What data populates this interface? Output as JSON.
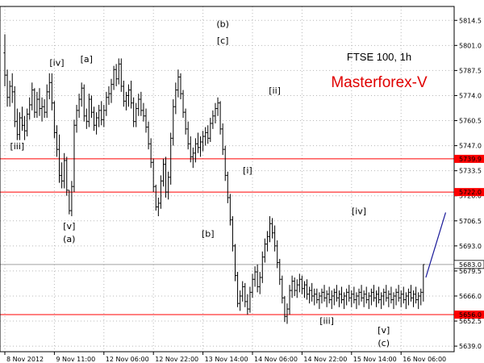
{
  "chart_data": {
    "type": "ohlc",
    "symbol_label": "FTSE 100, 1h",
    "brand_label": "Masterforex-V",
    "colors": {
      "bar": "#000000",
      "level": "#ff0000",
      "forecast": "#1a1a99",
      "brand": "#e00000",
      "grid": "#b8b8b8"
    },
    "ylim": [
      5636.0,
      5822.0
    ],
    "y_ticks": [
      "5814.5",
      "5801.0",
      "5787.5",
      "5774.0",
      "5760.5",
      "5747.0",
      "5733.5",
      "5720.0",
      "5706.5",
      "5693.0",
      "5679.5",
      "5666.0",
      "5652.5",
      "5639.0"
    ],
    "x_ticks": [
      {
        "index": 0,
        "label": "8 Nov 2012"
      },
      {
        "index": 20,
        "label": "9 Nov 11:00"
      },
      {
        "index": 40,
        "label": "12 Nov 06:00"
      },
      {
        "index": 60,
        "label": "12 Nov 22:00"
      },
      {
        "index": 80,
        "label": "13 Nov 14:00"
      },
      {
        "index": 100,
        "label": "14 Nov 06:00"
      },
      {
        "index": 120,
        "label": "14 Nov 22:00"
      },
      {
        "index": 140,
        "label": "15 Nov 14:00"
      },
      {
        "index": 160,
        "label": "16 Nov 06:00"
      }
    ],
    "bar_count": 170,
    "levels": [
      {
        "value": 5739.9,
        "label": "5739.9"
      },
      {
        "value": 5722.0,
        "label": "5722.0"
      },
      {
        "value": 5656.0,
        "label": "5656.0"
      }
    ],
    "current_price": {
      "value": 5683.0,
      "label": "5683.0"
    },
    "forecast_line": {
      "from": {
        "index": 170,
        "price": 5676
      },
      "to": {
        "index": 178,
        "price": 5711
      }
    },
    "wave_labels": [
      {
        "text": "[iii]",
        "index": 5,
        "price": 5745
      },
      {
        "text": "[iv]",
        "index": 21,
        "price": 5790
      },
      {
        "text": "[v]",
        "index": 26,
        "price": 5702
      },
      {
        "text": "(a)",
        "index": 26,
        "price": 5695
      },
      {
        "text": "[a]",
        "index": 33,
        "price": 5792
      },
      {
        "text": "(b)",
        "index": 88,
        "price": 5811
      },
      {
        "text": "[c]",
        "index": 88,
        "price": 5802
      },
      {
        "text": "[b]",
        "index": 82,
        "price": 5698
      },
      {
        "text": "[i]",
        "index": 98,
        "price": 5732
      },
      {
        "text": "[ii]",
        "index": 109,
        "price": 5775
      },
      {
        "text": "[iii]",
        "index": 130,
        "price": 5651
      },
      {
        "text": "[iv]",
        "index": 143,
        "price": 5710
      },
      {
        "text": "[v]",
        "index": 153,
        "price": 5646
      },
      {
        "text": "(c)",
        "index": 153,
        "price": 5639
      }
    ],
    "ohlc": [
      [
        5797,
        5807,
        5779,
        5785
      ],
      [
        5785,
        5788,
        5768,
        5773
      ],
      [
        5773,
        5782,
        5768,
        5779
      ],
      [
        5779,
        5786,
        5770,
        5776
      ],
      [
        5776,
        5779,
        5757,
        5760
      ],
      [
        5760,
        5767,
        5750,
        5753
      ],
      [
        5753,
        5765,
        5750,
        5762
      ],
      [
        5762,
        5768,
        5755,
        5758
      ],
      [
        5758,
        5763,
        5750,
        5755
      ],
      [
        5755,
        5767,
        5752,
        5764
      ],
      [
        5764,
        5773,
        5761,
        5769
      ],
      [
        5769,
        5781,
        5766,
        5777
      ],
      [
        5777,
        5778,
        5762,
        5765
      ],
      [
        5765,
        5776,
        5762,
        5772
      ],
      [
        5772,
        5778,
        5763,
        5767
      ],
      [
        5767,
        5773,
        5760,
        5768
      ],
      [
        5768,
        5772,
        5762,
        5765
      ],
      [
        5765,
        5780,
        5762,
        5776
      ],
      [
        5776,
        5786,
        5772,
        5781
      ],
      [
        5781,
        5786,
        5766,
        5770
      ],
      [
        5770,
        5771,
        5751,
        5754
      ],
      [
        5754,
        5758,
        5741,
        5745
      ],
      [
        5745,
        5753,
        5727,
        5731
      ],
      [
        5731,
        5738,
        5724,
        5728
      ],
      [
        5728,
        5743,
        5724,
        5739
      ],
      [
        5739,
        5741,
        5720,
        5723
      ],
      [
        5723,
        5723,
        5710,
        5712
      ],
      [
        5712,
        5728,
        5709,
        5725
      ],
      [
        5725,
        5761,
        5722,
        5758
      ],
      [
        5758,
        5769,
        5754,
        5766
      ],
      [
        5766,
        5775,
        5762,
        5772
      ],
      [
        5772,
        5781,
        5768,
        5778
      ],
      [
        5778,
        5780,
        5760,
        5763
      ],
      [
        5763,
        5767,
        5756,
        5760
      ],
      [
        5760,
        5775,
        5757,
        5772
      ],
      [
        5772,
        5774,
        5762,
        5765
      ],
      [
        5765,
        5768,
        5755,
        5758
      ],
      [
        5758,
        5765,
        5753,
        5762
      ],
      [
        5762,
        5769,
        5757,
        5766
      ],
      [
        5766,
        5771,
        5758,
        5761
      ],
      [
        5761,
        5769,
        5757,
        5766
      ],
      [
        5766,
        5776,
        5763,
        5773
      ],
      [
        5773,
        5779,
        5769,
        5775
      ],
      [
        5775,
        5783,
        5770,
        5780
      ],
      [
        5780,
        5790,
        5777,
        5788
      ],
      [
        5788,
        5791,
        5779,
        5783
      ],
      [
        5783,
        5794,
        5780,
        5791
      ],
      [
        5791,
        5794,
        5776,
        5779
      ],
      [
        5779,
        5782,
        5768,
        5771
      ],
      [
        5771,
        5776,
        5766,
        5774
      ],
      [
        5774,
        5780,
        5768,
        5777
      ],
      [
        5777,
        5782,
        5767,
        5770
      ],
      [
        5770,
        5773,
        5757,
        5760
      ],
      [
        5760,
        5770,
        5757,
        5767
      ],
      [
        5767,
        5775,
        5763,
        5772
      ],
      [
        5772,
        5776,
        5763,
        5766
      ],
      [
        5766,
        5770,
        5760,
        5763
      ],
      [
        5763,
        5767,
        5754,
        5757
      ],
      [
        5757,
        5760,
        5745,
        5748
      ],
      [
        5748,
        5751,
        5735,
        5738
      ],
      [
        5738,
        5740,
        5722,
        5725
      ],
      [
        5725,
        5726,
        5712,
        5714
      ],
      [
        5714,
        5719,
        5709,
        5716
      ],
      [
        5716,
        5731,
        5713,
        5728
      ],
      [
        5728,
        5740,
        5725,
        5737
      ],
      [
        5737,
        5741,
        5719,
        5722
      ],
      [
        5722,
        5733,
        5718,
        5730
      ],
      [
        5730,
        5754,
        5726,
        5751
      ],
      [
        5751,
        5772,
        5747,
        5768
      ],
      [
        5768,
        5781,
        5764,
        5777
      ],
      [
        5777,
        5788,
        5773,
        5784
      ],
      [
        5784,
        5786,
        5772,
        5775
      ],
      [
        5775,
        5777,
        5762,
        5765
      ],
      [
        5765,
        5767,
        5753,
        5756
      ],
      [
        5756,
        5760,
        5745,
        5748
      ],
      [
        5748,
        5752,
        5738,
        5741
      ],
      [
        5741,
        5746,
        5735,
        5743
      ],
      [
        5743,
        5751,
        5738,
        5748
      ],
      [
        5748,
        5754,
        5743,
        5746
      ],
      [
        5746,
        5752,
        5741,
        5749
      ],
      [
        5749,
        5755,
        5744,
        5752
      ],
      [
        5752,
        5757,
        5747,
        5754
      ],
      [
        5754,
        5758,
        5748,
        5751
      ],
      [
        5751,
        5762,
        5749,
        5759
      ],
      [
        5759,
        5766,
        5756,
        5763
      ],
      [
        5763,
        5770,
        5759,
        5767
      ],
      [
        5767,
        5773,
        5763,
        5770
      ],
      [
        5770,
        5771,
        5753,
        5756
      ],
      [
        5756,
        5759,
        5742,
        5745
      ],
      [
        5745,
        5747,
        5728,
        5731
      ],
      [
        5731,
        5733,
        5716,
        5719
      ],
      [
        5719,
        5721,
        5704,
        5707
      ],
      [
        5707,
        5709,
        5690,
        5693
      ],
      [
        5693,
        5694,
        5674,
        5677
      ],
      [
        5677,
        5679,
        5660,
        5662
      ],
      [
        5662,
        5669,
        5658,
        5666
      ],
      [
        5666,
        5674,
        5663,
        5671
      ],
      [
        5671,
        5673,
        5660,
        5663
      ],
      [
        5663,
        5667,
        5656,
        5659
      ],
      [
        5659,
        5671,
        5657,
        5668
      ],
      [
        5668,
        5678,
        5665,
        5675
      ],
      [
        5675,
        5682,
        5671,
        5679
      ],
      [
        5679,
        5683,
        5668,
        5671
      ],
      [
        5671,
        5679,
        5667,
        5676
      ],
      [
        5676,
        5690,
        5673,
        5687
      ],
      [
        5687,
        5697,
        5684,
        5694
      ],
      [
        5694,
        5701,
        5690,
        5698
      ],
      [
        5698,
        5709,
        5695,
        5705
      ],
      [
        5705,
        5708,
        5697,
        5700
      ],
      [
        5700,
        5704,
        5690,
        5693
      ],
      [
        5693,
        5696,
        5681,
        5684
      ],
      [
        5684,
        5686,
        5672,
        5675
      ],
      [
        5675,
        5677,
        5662,
        5665
      ],
      [
        5665,
        5666,
        5652,
        5655
      ],
      [
        5655,
        5662,
        5651,
        5659
      ],
      [
        5659,
        5672,
        5656,
        5669
      ],
      [
        5669,
        5677,
        5665,
        5674
      ],
      [
        5674,
        5676,
        5666,
        5669
      ],
      [
        5669,
        5675,
        5665,
        5672
      ],
      [
        5672,
        5678,
        5668,
        5675
      ],
      [
        5675,
        5677,
        5667,
        5670
      ],
      [
        5670,
        5674,
        5665,
        5672
      ],
      [
        5672,
        5675,
        5664,
        5667
      ],
      [
        5667,
        5671,
        5662,
        5669
      ],
      [
        5669,
        5673,
        5663,
        5666
      ],
      [
        5666,
        5670,
        5661,
        5667
      ],
      [
        5667,
        5670,
        5662,
        5664
      ],
      [
        5664,
        5668,
        5659,
        5666
      ],
      [
        5666,
        5670,
        5662,
        5668
      ],
      [
        5668,
        5672,
        5663,
        5665
      ],
      [
        5665,
        5669,
        5660,
        5667
      ],
      [
        5667,
        5671,
        5662,
        5664
      ],
      [
        5664,
        5669,
        5659,
        5666
      ],
      [
        5666,
        5670,
        5661,
        5668
      ],
      [
        5668,
        5672,
        5663,
        5665
      ],
      [
        5665,
        5669,
        5660,
        5667
      ],
      [
        5667,
        5671,
        5662,
        5664
      ],
      [
        5664,
        5668,
        5659,
        5666
      ],
      [
        5666,
        5670,
        5661,
        5668
      ],
      [
        5668,
        5672,
        5663,
        5665
      ],
      [
        5665,
        5669,
        5660,
        5667
      ],
      [
        5667,
        5671,
        5662,
        5664
      ],
      [
        5664,
        5668,
        5659,
        5666
      ],
      [
        5666,
        5670,
        5661,
        5668
      ],
      [
        5668,
        5672,
        5663,
        5665
      ],
      [
        5665,
        5669,
        5660,
        5667
      ],
      [
        5667,
        5671,
        5662,
        5664
      ],
      [
        5664,
        5668,
        5659,
        5666
      ],
      [
        5666,
        5670,
        5661,
        5668
      ],
      [
        5668,
        5672,
        5663,
        5665
      ],
      [
        5665,
        5669,
        5660,
        5667
      ],
      [
        5667,
        5671,
        5662,
        5664
      ],
      [
        5664,
        5668,
        5659,
        5666
      ],
      [
        5666,
        5670,
        5661,
        5668
      ],
      [
        5668,
        5672,
        5663,
        5665
      ],
      [
        5665,
        5669,
        5660,
        5667
      ],
      [
        5667,
        5671,
        5662,
        5664
      ],
      [
        5664,
        5668,
        5659,
        5666
      ],
      [
        5666,
        5670,
        5661,
        5668
      ],
      [
        5668,
        5672,
        5663,
        5665
      ],
      [
        5665,
        5669,
        5660,
        5667
      ],
      [
        5667,
        5671,
        5662,
        5664
      ],
      [
        5664,
        5668,
        5659,
        5666
      ],
      [
        5666,
        5670,
        5661,
        5668
      ],
      [
        5668,
        5672,
        5663,
        5665
      ],
      [
        5665,
        5669,
        5660,
        5667
      ],
      [
        5667,
        5671,
        5662,
        5664
      ],
      [
        5664,
        5668,
        5659,
        5666
      ],
      [
        5666,
        5670,
        5661,
        5668
      ],
      [
        5668,
        5683,
        5663,
        5683
      ]
    ]
  }
}
